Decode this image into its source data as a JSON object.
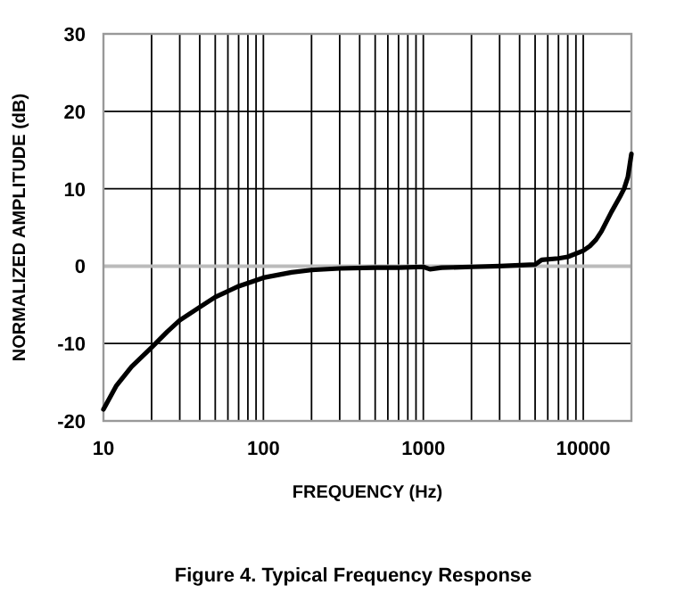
{
  "chart_data": {
    "type": "line",
    "title": "Figure 4. Typical Frequency Response",
    "xlabel": "FREQUENCY (Hz)",
    "ylabel": "NORMALIZED AMPLITUDE (dB)",
    "log": "x",
    "series": [
      {
        "color": "#000000",
        "x": [
          10,
          12,
          15,
          20,
          25,
          30,
          40,
          50,
          70,
          100,
          150,
          200,
          300,
          500,
          700,
          1000,
          1100,
          1300,
          2000,
          3000,
          5000,
          5500,
          7000,
          8000,
          10000,
          11000,
          12000,
          13000,
          15000,
          17000,
          18000,
          19000,
          20000
        ],
        "values": [
          -18.5,
          -15.5,
          -13,
          -10.5,
          -8.5,
          -7,
          -5.3,
          -4,
          -2.6,
          -1.5,
          -0.8,
          -0.5,
          -0.3,
          -0.2,
          -0.2,
          -0.1,
          -0.4,
          -0.2,
          -0.1,
          0,
          0.2,
          0.8,
          1,
          1.2,
          2,
          2.6,
          3.4,
          4.5,
          7,
          9,
          10,
          11.5,
          14.5
        ]
      }
    ],
    "xlim": [
      10,
      20000
    ],
    "ylim": [
      -20,
      30
    ],
    "xticks": [
      10,
      100,
      1000,
      10000
    ],
    "yticks": [
      -20,
      -10,
      0,
      10,
      20,
      30
    ],
    "grid": true,
    "marker": "none",
    "line_style": "solid"
  }
}
